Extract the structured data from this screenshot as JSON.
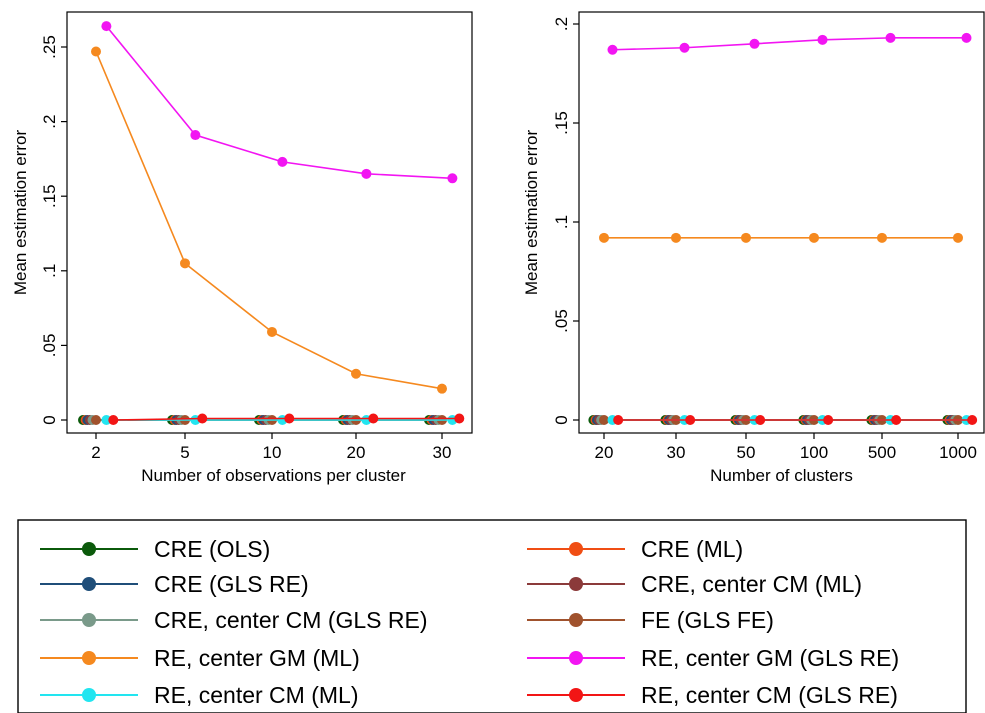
{
  "series_styles": [
    {
      "name": "CRE (OLS)",
      "color": "#0b5a0b"
    },
    {
      "name": "CRE (GLS RE)",
      "color": "#1f4e79"
    },
    {
      "name": "CRE, center CM (GLS RE)",
      "color": "#7a9a8a"
    },
    {
      "name": "RE, center GM (ML)",
      "color": "#f5891f"
    },
    {
      "name": "RE, center CM (ML)",
      "color": "#22e5f0"
    },
    {
      "name": "CRE (ML)",
      "color": "#f04e14"
    },
    {
      "name": "CRE, center CM (ML)",
      "color": "#8b3a3a"
    },
    {
      "name": "FE (GLS FE)",
      "color": "#a0522d"
    },
    {
      "name": "RE, center GM (GLS RE)",
      "color": "#f215f2"
    },
    {
      "name": "RE, center CM (GLS RE)",
      "color": "#f21515"
    }
  ],
  "legend": {
    "position": "bottom",
    "columns": 2,
    "entries": [
      "CRE (OLS)",
      "CRE (ML)",
      "CRE (GLS RE)",
      "CRE, center CM (ML)",
      "CRE, center CM (GLS RE)",
      "FE (GLS FE)",
      "RE, center GM (ML)",
      "RE, center GM (GLS RE)",
      "RE, center CM (ML)",
      "RE, center CM (GLS RE)"
    ]
  },
  "chart_data": [
    {
      "type": "line",
      "xlabel": "Number of observations per cluster",
      "ylabel": "Mean estimation error",
      "categories": [
        "2",
        "5",
        "10",
        "20",
        "30"
      ],
      "ylim": [
        0,
        0.27
      ],
      "yticks": [
        0,
        0.05,
        0.1,
        0.15,
        0.2,
        0.25
      ],
      "ytick_labels": [
        "0",
        ".05",
        ".1",
        ".15",
        ".2",
        ".25"
      ],
      "grid": false,
      "series": [
        {
          "name": "CRE (OLS)",
          "values": [
            0,
            0,
            0,
            0,
            0
          ]
        },
        {
          "name": "CRE (GLS RE)",
          "values": [
            0,
            0,
            0,
            0,
            0
          ]
        },
        {
          "name": "CRE, center CM (GLS RE)",
          "values": [
            0,
            0,
            0,
            0,
            0
          ]
        },
        {
          "name": "RE, center GM (ML)",
          "values": [
            0.247,
            0.105,
            0.059,
            0.031,
            0.021
          ]
        },
        {
          "name": "RE, center CM (ML)",
          "values": [
            0,
            0,
            0,
            0,
            0
          ]
        },
        {
          "name": "CRE (ML)",
          "values": [
            0,
            0,
            0,
            0,
            0
          ]
        },
        {
          "name": "CRE, center CM (ML)",
          "values": [
            0,
            0,
            0,
            0,
            0
          ]
        },
        {
          "name": "FE (GLS FE)",
          "values": [
            0,
            0,
            0,
            0,
            0
          ]
        },
        {
          "name": "RE, center GM (GLS RE)",
          "values": [
            0.264,
            0.191,
            0.173,
            0.165,
            0.162
          ]
        },
        {
          "name": "RE, center CM (GLS RE)",
          "values": [
            0,
            0.001,
            0.001,
            0.001,
            0.001
          ]
        }
      ]
    },
    {
      "type": "line",
      "xlabel": "Number of clusters",
      "ylabel": "Mean estimation error",
      "categories": [
        "20",
        "30",
        "50",
        "100",
        "500",
        "1000"
      ],
      "ylim": [
        0,
        0.2
      ],
      "yticks": [
        0,
        0.05,
        0.1,
        0.15,
        0.2
      ],
      "ytick_labels": [
        "0",
        ".05",
        ".1",
        ".15",
        ".2"
      ],
      "grid": false,
      "series": [
        {
          "name": "CRE (OLS)",
          "values": [
            0,
            0,
            0,
            0,
            0,
            0
          ]
        },
        {
          "name": "CRE (GLS RE)",
          "values": [
            0,
            0,
            0,
            0,
            0,
            0
          ]
        },
        {
          "name": "CRE, center CM (GLS RE)",
          "values": [
            0,
            0,
            0,
            0,
            0,
            0
          ]
        },
        {
          "name": "RE, center GM (ML)",
          "values": [
            0.092,
            0.092,
            0.092,
            0.092,
            0.092,
            0.092
          ]
        },
        {
          "name": "RE, center CM (ML)",
          "values": [
            0,
            0,
            0,
            0,
            0,
            0
          ]
        },
        {
          "name": "CRE (ML)",
          "values": [
            0,
            0,
            0,
            0,
            0,
            0
          ]
        },
        {
          "name": "CRE, center CM (ML)",
          "values": [
            0,
            0,
            0,
            0,
            0,
            0
          ]
        },
        {
          "name": "FE (GLS FE)",
          "values": [
            0,
            0,
            0,
            0,
            0,
            0
          ]
        },
        {
          "name": "RE, center GM (GLS RE)",
          "values": [
            0.187,
            0.188,
            0.19,
            0.192,
            0.193,
            0.193
          ]
        },
        {
          "name": "RE, center CM (GLS RE)",
          "values": [
            0,
            0,
            0,
            0,
            0,
            0
          ]
        }
      ]
    }
  ]
}
